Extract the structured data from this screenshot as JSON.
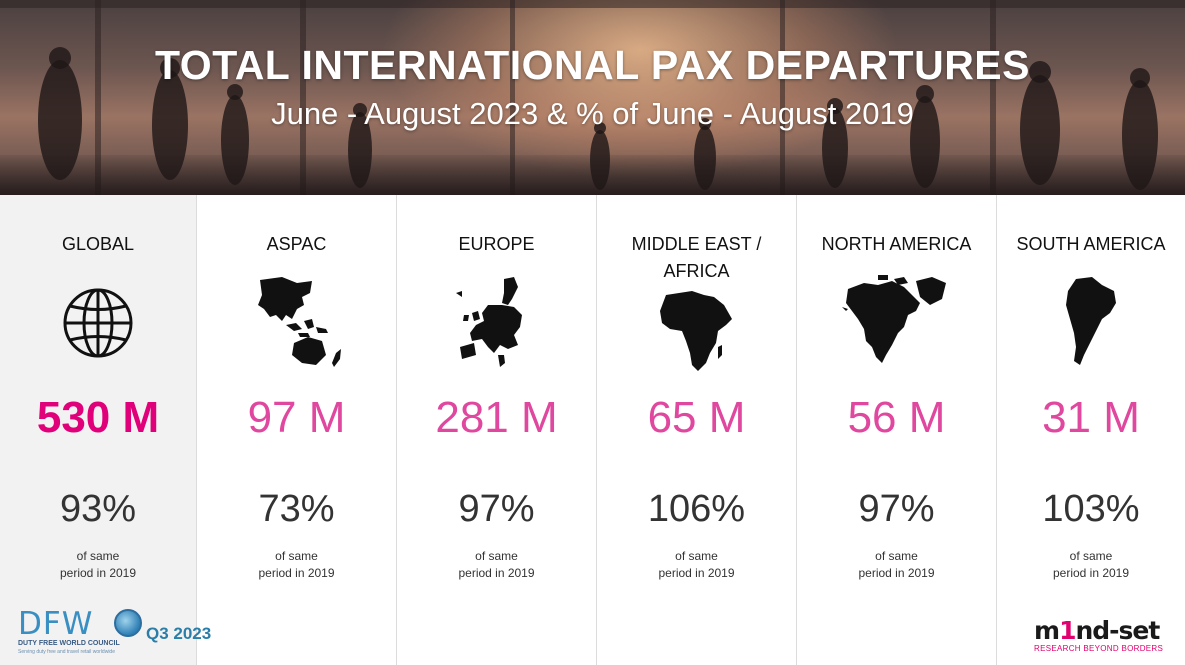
{
  "header": {
    "title": "TOTAL INTERNATIONAL PAX DEPARTURES",
    "subtitle": "June - August 2023 & % of June - August 2019"
  },
  "regions": [
    {
      "name": "GLOBAL",
      "icon": "globe-icon",
      "value": "530 M",
      "pct": "93%",
      "note_line1": "of same",
      "note_line2": "period in 2019"
    },
    {
      "name": "ASPAC",
      "icon": "asia-pacific-map-icon",
      "value": "97 M",
      "pct": "73%",
      "note_line1": "of same",
      "note_line2": "period in 2019"
    },
    {
      "name": "EUROPE",
      "icon": "europe-map-icon",
      "value": "281 M",
      "pct": "97%",
      "note_line1": "of same",
      "note_line2": "period in 2019"
    },
    {
      "name_line1": "MIDDLE EAST /",
      "name_line2": "AFRICA",
      "icon": "africa-map-icon",
      "value": "65 M",
      "pct": "106%",
      "note_line1": "of same",
      "note_line2": "period in 2019"
    },
    {
      "name": "NORTH AMERICA",
      "icon": "north-america-map-icon",
      "value": "56 M",
      "pct": "97%",
      "note_line1": "of same",
      "note_line2": "period in 2019"
    },
    {
      "name": "SOUTH AMERICA",
      "icon": "south-america-map-icon",
      "value": "31 M",
      "pct": "103%",
      "note_line1": "of same",
      "note_line2": "period in 2019"
    }
  ],
  "footer": {
    "dfwc_letters": "DFW",
    "dfwc_name": "DUTY FREE WORLD COUNCIL",
    "dfwc_tagline": "Serving duty free and travel retail worldwide",
    "quarter": "Q3 2023",
    "mindset_pre": "m",
    "mindset_hl": "1",
    "mindset_post": "nd-set",
    "mindset_tagline": "RESEARCH BEYOND BORDERS"
  },
  "colors": {
    "accent_pink": "#e0479e",
    "global_pink": "#e0007a",
    "quarter_blue": "#2a7ea8"
  }
}
